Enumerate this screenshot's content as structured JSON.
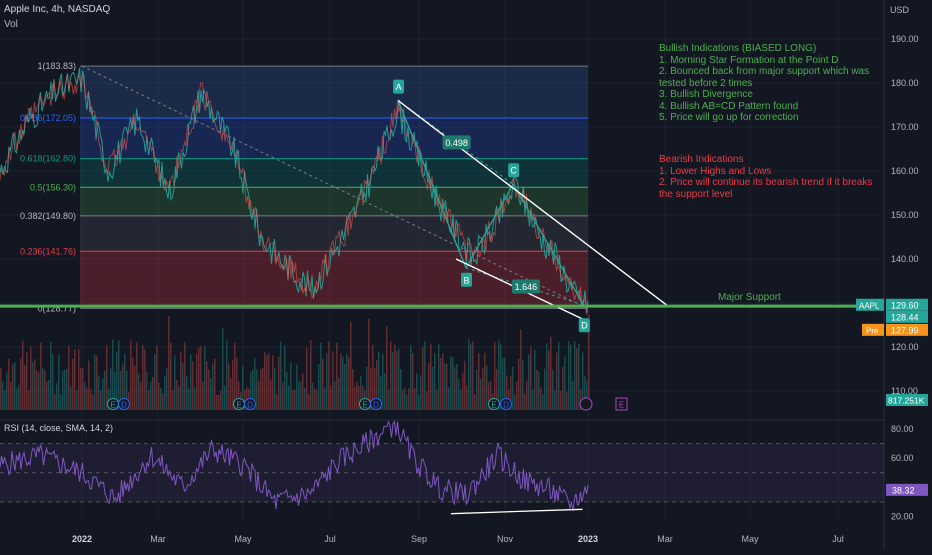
{
  "header": {
    "symbol": "Apple Inc, 4h, NASDAQ",
    "volume_label": "Vol"
  },
  "currency": "USD",
  "chart_data": [
    {
      "type": "line",
      "title": "Apple Inc, 4h, NASDAQ",
      "ylabel": "USD",
      "ylim": [
        106,
        196
      ],
      "y_ticks": [
        110,
        120,
        130,
        140,
        150,
        160,
        170,
        180,
        190
      ],
      "x_ticks": [
        "2022",
        "Mar",
        "May",
        "Jul",
        "Sep",
        "Nov",
        "2023",
        "Mar",
        "May",
        "Jul"
      ],
      "series": [
        {
          "x": [
            "2022-01-01",
            "2022-01-20",
            "2022-02-10",
            "2022-03-05",
            "2022-03-28",
            "2022-04-20",
            "2022-05-10",
            "2022-05-24",
            "2022-06-16",
            "2022-07-08",
            "2022-07-28",
            "2022-08-17",
            "2022-09-02",
            "2022-09-20",
            "2022-10-10",
            "2022-10-26",
            "2022-11-10",
            "2022-11-28",
            "2022-12-10",
            "2022-12-22",
            "2022-12-30"
          ],
          "values": [
            181,
            160,
            172,
            155,
            178,
            165,
            145,
            140,
            133,
            145,
            158,
            174,
            162,
            150,
            140,
            148,
            157,
            145,
            140,
            132,
            130
          ]
        }
      ],
      "fibonacci": [
        {
          "label": "1(183.83)",
          "ratio": 1,
          "price": 183.83
        },
        {
          "label": "0.786(172.05)",
          "ratio": 0.786,
          "price": 172.05
        },
        {
          "label": "0.618(162.80)",
          "ratio": 0.618,
          "price": 162.8
        },
        {
          "label": "0.5(156.30)",
          "ratio": 0.5,
          "price": 156.3
        },
        {
          "label": "0.382(149.80)",
          "ratio": 0.382,
          "price": 149.8
        },
        {
          "label": "0.236(141.76)",
          "ratio": 0.236,
          "price": 141.76
        },
        {
          "label": "0(128.77)",
          "ratio": 0,
          "price": 128.77
        }
      ],
      "pattern_points": [
        {
          "label": "A",
          "date": "2022-08-17",
          "price": 176
        },
        {
          "label": "B",
          "date": "2022-10-05",
          "price": 138
        },
        {
          "label": "C",
          "date": "2022-11-08",
          "price": 157
        },
        {
          "label": "D",
          "date": "2022-12-29",
          "price": 129.5
        }
      ],
      "ratios": [
        "0.498",
        "1.646"
      ],
      "support": {
        "label": "Major Support",
        "price": 129.3
      },
      "price_tags": [
        {
          "label": "AAPL",
          "value": "129.60"
        },
        {
          "label": "",
          "value": "128.44"
        },
        {
          "label": "Pre",
          "value": "127.99"
        }
      ],
      "volume_tag": "817.251K",
      "event_markers": [
        "E",
        "D",
        "E",
        "D",
        "E",
        "D",
        "E",
        "D"
      ]
    },
    {
      "type": "line",
      "title": "RSI (14, close, SMA, 14, 2)",
      "ylim": [
        17,
        86
      ],
      "y_ticks": [
        20,
        40,
        60,
        80
      ],
      "y_tick_labels": [
        "20.00",
        "",
        "60.00",
        "80.00"
      ],
      "levels": [
        30,
        50,
        70
      ],
      "series": [
        {
          "x": [
            "2022-01-01",
            "2022-01-25",
            "2022-02-20",
            "2022-03-15",
            "2022-04-05",
            "2022-04-28",
            "2022-05-20",
            "2022-06-15",
            "2022-07-05",
            "2022-07-25",
            "2022-08-15",
            "2022-08-28",
            "2022-09-15",
            "2022-10-05",
            "2022-10-28",
            "2022-11-15",
            "2022-12-05",
            "2022-12-20",
            "2022-12-30"
          ],
          "values": [
            50,
            32,
            62,
            40,
            66,
            55,
            30,
            36,
            58,
            70,
            84,
            60,
            40,
            34,
            62,
            45,
            38,
            28,
            38
          ]
        }
      ],
      "divergence_line": {
        "from": {
          "date": "2022-10-05",
          "value": 22
        },
        "to": {
          "date": "2022-12-28",
          "value": 25
        }
      },
      "current": "38.32"
    }
  ],
  "annotations": {
    "bullish": [
      "Bullish Indications (BIASED LONG)",
      "1. Morning Star Formation at the Point D",
      "2. Bounced back from major support which was",
      "tested before 2 times",
      "3. Bullish Divergence",
      "4. Bullish AB=CD Pattern found",
      "5. Price will go up for correction"
    ],
    "bearish": [
      "Bearish Indications",
      "1. Lower Highs and Lows",
      "2. Price will continue its bearish trend if it breaks",
      "the support level"
    ]
  },
  "colors": {
    "background": "#131722",
    "support": "#4caf50",
    "rsi": "#7e57c2",
    "pattern": "#26a69a",
    "bullish_text": "#4caf50",
    "bearish_text": "#f23645",
    "price_tag": "#26a69a",
    "pre_tag": "#f7931a"
  }
}
